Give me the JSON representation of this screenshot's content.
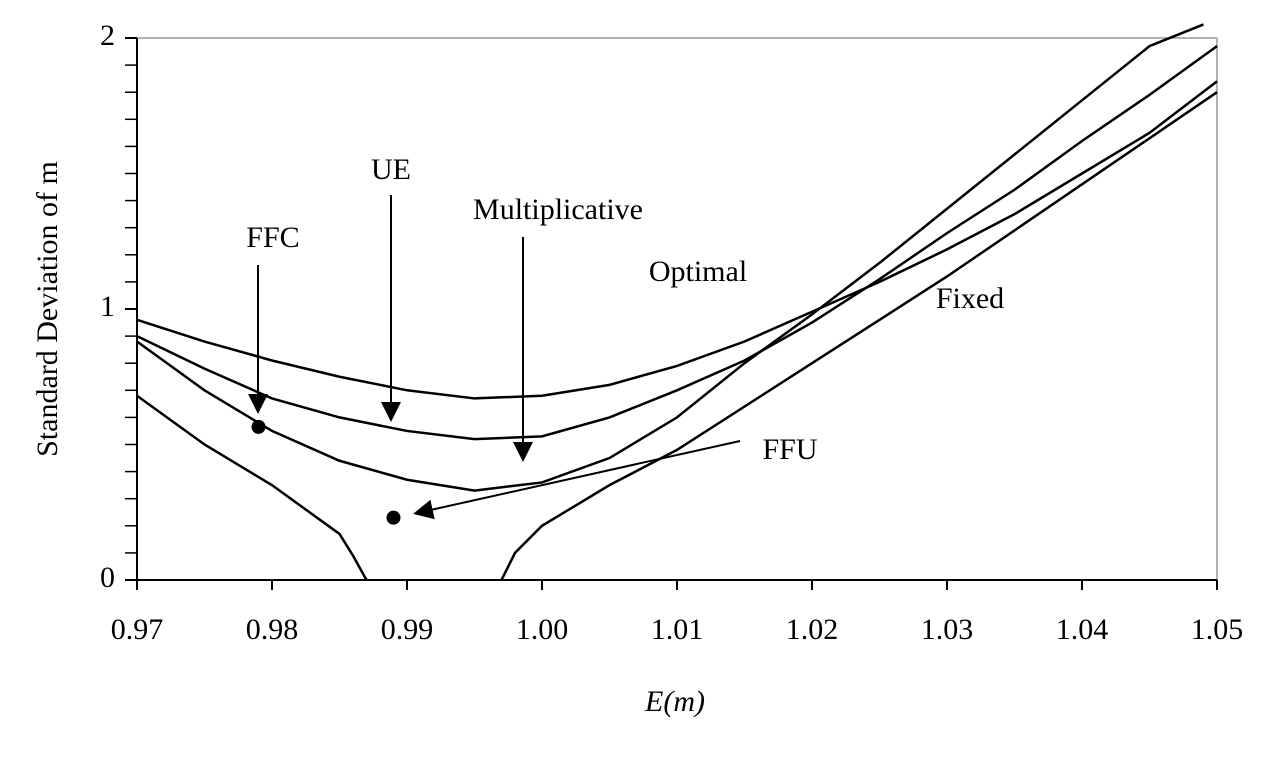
{
  "chart_data": {
    "type": "line",
    "xlabel": "E(m)",
    "ylabel": "Standard Deviation of m",
    "xlim": [
      0.97,
      1.05
    ],
    "ylim": [
      0,
      2
    ],
    "xticks": [
      0.97,
      0.98,
      0.99,
      {
        "value": 1,
        "label": "1.00"
      },
      1.01,
      1.02,
      1.03,
      1.04,
      1.05
    ],
    "yticks": [
      0,
      1,
      2
    ],
    "yminorticks": [
      0.1,
      0.2,
      0.3,
      0.4,
      0.5,
      0.6,
      0.7,
      0.8,
      0.9,
      1.1,
      1.2,
      1.3,
      1.4,
      1.5,
      1.6,
      1.7,
      1.8,
      1.9
    ],
    "series": [
      {
        "color": "#000000",
        "x": [
          0.97,
          0.975,
          0.98,
          0.985,
          0.99,
          0.995,
          1.0,
          1.005,
          1.01,
          1.015,
          1.02,
          1.025,
          1.03,
          1.035,
          1.04,
          1.045,
          1.05
        ],
        "values": [
          0.96,
          0.88,
          0.81,
          0.75,
          0.7,
          0.67,
          0.68,
          0.72,
          0.79,
          0.88,
          0.99,
          1.1,
          1.22,
          1.35,
          1.5,
          1.65,
          1.84
        ]
      },
      {
        "color": "#000000",
        "x": [
          0.97,
          0.975,
          0.98,
          0.985,
          0.99,
          0.995,
          1.0,
          1.005,
          1.01,
          1.015,
          1.02,
          1.025,
          1.03,
          1.035,
          1.04,
          1.045,
          1.05
        ],
        "values": [
          0.9,
          0.78,
          0.67,
          0.6,
          0.55,
          0.52,
          0.53,
          0.6,
          0.7,
          0.81,
          0.95,
          1.11,
          1.28,
          1.44,
          1.62,
          1.79,
          1.97
        ]
      },
      {
        "color": "#000000",
        "x": [
          0.97,
          0.975,
          0.98,
          0.985,
          0.99,
          0.995,
          1.0,
          1.005,
          1.01,
          1.015,
          1.02,
          1.025,
          1.03,
          1.035,
          1.04,
          1.045,
          1.049
        ],
        "values": [
          0.88,
          0.7,
          0.55,
          0.44,
          0.37,
          0.33,
          0.36,
          0.45,
          0.6,
          0.8,
          0.98,
          1.17,
          1.37,
          1.57,
          1.77,
          1.97,
          2.05
        ]
      },
      {
        "color": "#000000",
        "x": [
          0.97,
          0.975,
          0.98,
          0.985,
          0.986,
          0.987,
          0.99,
          0.997,
          0.998,
          1.0,
          1.005,
          1.01,
          1.02,
          1.03,
          1.04,
          1.05
        ],
        "values": [
          0.68,
          0.5,
          0.35,
          0.17,
          0.09,
          0.0,
          null,
          0.0,
          0.1,
          0.2,
          0.35,
          0.48,
          0.8,
          1.12,
          1.46,
          1.8
        ]
      },
      {
        "type": "scatter",
        "color": "#000000",
        "x": [
          0.979,
          0.989
        ],
        "values": [
          0.565,
          0.23
        ]
      }
    ],
    "annotations": [
      "UE",
      "FFC",
      "Multiplicative",
      "Optimal",
      "Fixed",
      "FFU"
    ]
  }
}
